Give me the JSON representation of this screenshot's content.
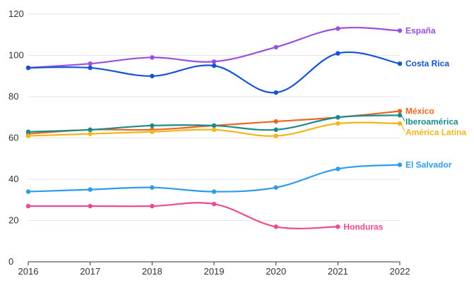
{
  "chart_data": {
    "type": "line",
    "title": "",
    "xlabel": "",
    "ylabel": "",
    "x": [
      2016,
      2017,
      2018,
      2019,
      2020,
      2021,
      2022
    ],
    "ylim": [
      0,
      120
    ],
    "yticks": [
      0,
      20,
      40,
      60,
      80,
      100,
      120
    ],
    "grid": true,
    "legend": "labels at line ends",
    "series": [
      {
        "name": "España",
        "color": "#9B4FDC",
        "values": [
          94,
          96,
          99,
          97,
          104,
          113,
          112
        ]
      },
      {
        "name": "Costa Rica",
        "color": "#1553D6",
        "values": [
          94,
          94,
          90,
          95,
          82,
          101,
          96
        ]
      },
      {
        "name": "México",
        "color": "#EB6623",
        "values": [
          62,
          64,
          64,
          66,
          68,
          70,
          73
        ]
      },
      {
        "name": "Iberoamérica",
        "color": "#1A8A8C",
        "values": [
          63,
          64,
          66,
          66,
          64,
          70,
          71
        ]
      },
      {
        "name": "América Latina",
        "color": "#F2B51A",
        "values": [
          61,
          62,
          63,
          64,
          61,
          67,
          67
        ]
      },
      {
        "name": "El Salvador",
        "color": "#2E9BEF",
        "values": [
          34,
          35,
          36,
          34,
          36,
          45,
          47
        ]
      },
      {
        "name": "Honduras",
        "color": "#EC4A8C",
        "values": [
          27,
          27,
          27,
          28,
          17,
          17,
          null
        ]
      }
    ]
  }
}
